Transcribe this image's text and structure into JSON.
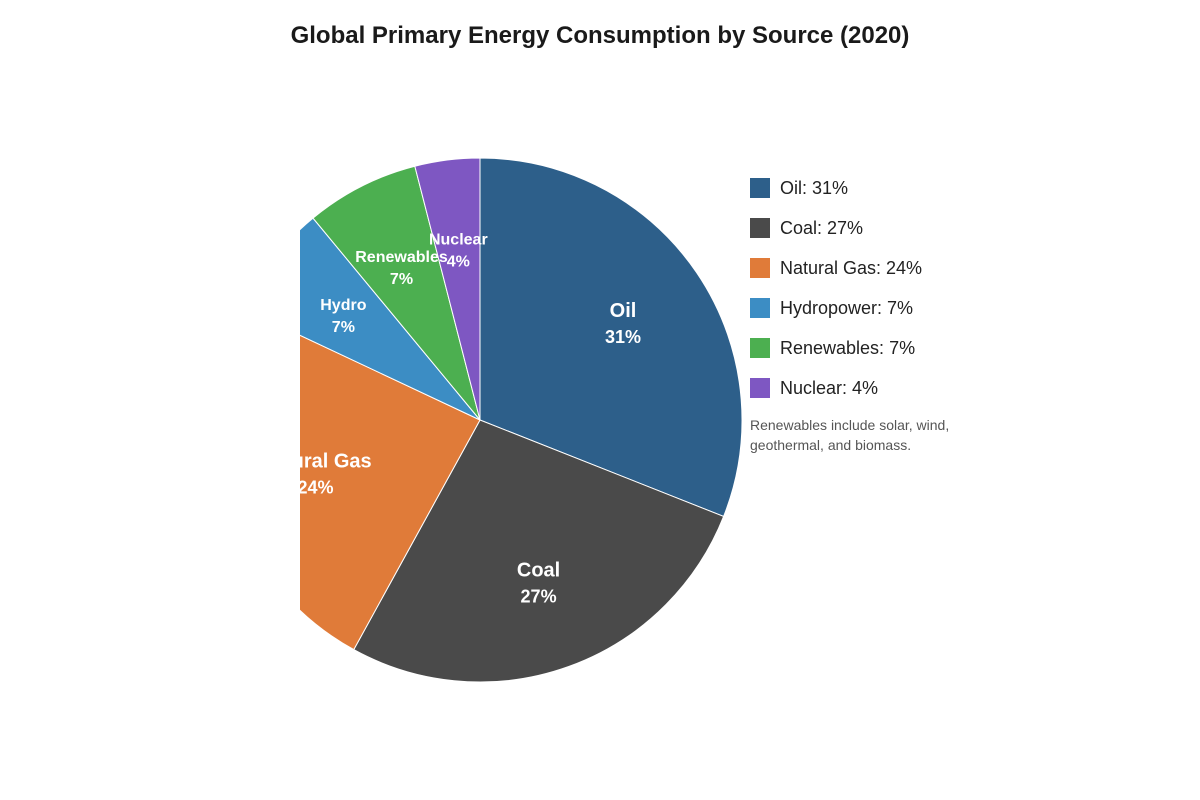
{
  "chart_data": {
    "type": "pie",
    "title": "Global Primary Energy Consumption by Source (2020)",
    "categories": [
      "Oil",
      "Coal",
      "Natural Gas",
      "Hydropower",
      "Renewables",
      "Nuclear"
    ],
    "slice_labels": [
      "Oil",
      "Coal",
      "Natural Gas",
      "Hydro",
      "Renewables",
      "Nuclear"
    ],
    "values": [
      31,
      27,
      24,
      7,
      7,
      4
    ],
    "value_labels": [
      "31%",
      "27%",
      "24%",
      "7%",
      "7%",
      "4%"
    ],
    "legend": [
      "Oil: 31%",
      "Coal: 27%",
      "Natural Gas: 24%",
      "Hydropower: 7%",
      "Renewables: 7%",
      "Nuclear: 4%"
    ],
    "colors": [
      "#2d5f8a",
      "#4a4a4a",
      "#e07b39",
      "#3c8dc4",
      "#4caf50",
      "#7e57c2"
    ],
    "legend_placement": "right",
    "annotation": "Renewables include solar, wind, geothermal, and biomass."
  }
}
